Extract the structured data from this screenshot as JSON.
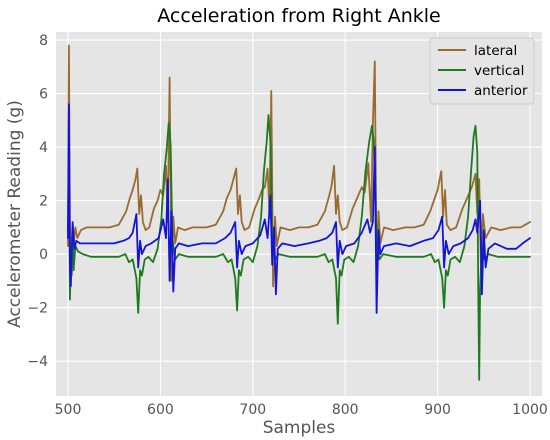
{
  "chart_data": {
    "type": "line",
    "title": "Acceleration from Right Ankle",
    "xlabel": "Samples",
    "ylabel": "Accelerometer Reading (g)",
    "xlim": [
      487,
      1013
    ],
    "ylim": [
      -5.3,
      8.3
    ],
    "x_ticks": [
      500,
      600,
      700,
      800,
      900,
      1000
    ],
    "y_ticks": [
      -4,
      -2,
      0,
      2,
      4,
      6,
      8
    ],
    "y_tick_labels": [
      "−4",
      "−2",
      "0",
      "2",
      "4",
      "6",
      "8"
    ],
    "grid": true,
    "legend_position": "top-right",
    "series": [
      {
        "name": "lateral",
        "color": "#9a6b2e",
        "points": [
          [
            500,
            0.3
          ],
          [
            501,
            7.8
          ],
          [
            502,
            1.2
          ],
          [
            504,
            -0.8
          ],
          [
            506,
            0.4
          ],
          [
            508,
            1.0
          ],
          [
            510,
            0.6
          ],
          [
            514,
            0.9
          ],
          [
            520,
            1.0
          ],
          [
            530,
            1.0
          ],
          [
            545,
            1.0
          ],
          [
            555,
            1.1
          ],
          [
            563,
            1.6
          ],
          [
            567,
            2.1
          ],
          [
            570,
            2.4
          ],
          [
            573,
            2.8
          ],
          [
            575,
            3.2
          ],
          [
            577,
            1.5
          ],
          [
            579,
            2.2
          ],
          [
            581,
            1.2
          ],
          [
            584,
            0.9
          ],
          [
            588,
            1.0
          ],
          [
            593,
            1.7
          ],
          [
            597,
            2.0
          ],
          [
            600,
            2.4
          ],
          [
            603,
            2.2
          ],
          [
            606,
            3.3
          ],
          [
            608,
            1.2
          ],
          [
            610,
            6.6
          ],
          [
            612,
            -1.0
          ],
          [
            614,
            1.4
          ],
          [
            616,
            0.4
          ],
          [
            619,
            1.0
          ],
          [
            626,
            0.9
          ],
          [
            635,
            1.0
          ],
          [
            650,
            1.0
          ],
          [
            660,
            1.1
          ],
          [
            668,
            1.6
          ],
          [
            672,
            2.1
          ],
          [
            676,
            2.4
          ],
          [
            679,
            2.8
          ],
          [
            682,
            3.2
          ],
          [
            684,
            1.5
          ],
          [
            686,
            2.2
          ],
          [
            688,
            1.2
          ],
          [
            691,
            0.9
          ],
          [
            696,
            1.0
          ],
          [
            702,
            1.7
          ],
          [
            707,
            2.1
          ],
          [
            710,
            2.4
          ],
          [
            713,
            2.5
          ],
          [
            716,
            3.2
          ],
          [
            718,
            1.5
          ],
          [
            720,
            6.1
          ],
          [
            722,
            -1.2
          ],
          [
            724,
            1.4
          ],
          [
            726,
            0.3
          ],
          [
            730,
            1.0
          ],
          [
            740,
            0.9
          ],
          [
            750,
            1.0
          ],
          [
            760,
            1.0
          ],
          [
            770,
            1.1
          ],
          [
            778,
            1.6
          ],
          [
            782,
            2.1
          ],
          [
            785,
            2.5
          ],
          [
            788,
            3.3
          ],
          [
            790,
            1.5
          ],
          [
            792,
            2.2
          ],
          [
            794,
            1.2
          ],
          [
            797,
            0.9
          ],
          [
            802,
            1.0
          ],
          [
            808,
            1.7
          ],
          [
            813,
            2.1
          ],
          [
            818,
            2.5
          ],
          [
            821,
            2.3
          ],
          [
            825,
            3.4
          ],
          [
            828,
            1.2
          ],
          [
            830,
            4.9
          ],
          [
            832,
            7.2
          ],
          [
            834,
            -0.7
          ],
          [
            836,
            1.6
          ],
          [
            838,
            0.4
          ],
          [
            842,
            1.0
          ],
          [
            852,
            0.9
          ],
          [
            865,
            1.0
          ],
          [
            875,
            1.0
          ],
          [
            885,
            1.1
          ],
          [
            892,
            1.6
          ],
          [
            897,
            2.1
          ],
          [
            900,
            2.4
          ],
          [
            904,
            3.1
          ],
          [
            906,
            1.4
          ],
          [
            908,
            2.4
          ],
          [
            910,
            1.1
          ],
          [
            914,
            0.9
          ],
          [
            920,
            1.0
          ],
          [
            927,
            1.7
          ],
          [
            932,
            2.1
          ],
          [
            937,
            2.5
          ],
          [
            941,
            3.0
          ],
          [
            943,
            1.5
          ],
          [
            945,
            2.8
          ],
          [
            947,
            -0.6
          ],
          [
            949,
            1.5
          ],
          [
            952,
            0.6
          ],
          [
            958,
            1.0
          ],
          [
            968,
            0.9
          ],
          [
            980,
            1.0
          ],
          [
            990,
            1.0
          ],
          [
            1000,
            1.2
          ]
        ]
      },
      {
        "name": "vertical",
        "color": "#1e7a1e",
        "points": [
          [
            500,
            0.8
          ],
          [
            501,
            3.8
          ],
          [
            502,
            -1.7
          ],
          [
            503,
            -0.5
          ],
          [
            505,
            0.8
          ],
          [
            506,
            -0.6
          ],
          [
            508,
            0.3
          ],
          [
            511,
            0.1
          ],
          [
            516,
            0.0
          ],
          [
            525,
            -0.1
          ],
          [
            540,
            -0.1
          ],
          [
            555,
            -0.1
          ],
          [
            562,
            0.0
          ],
          [
            566,
            -0.3
          ],
          [
            570,
            -0.2
          ],
          [
            574,
            -0.9
          ],
          [
            576,
            -2.2
          ],
          [
            578,
            -0.6
          ],
          [
            580,
            -0.8
          ],
          [
            583,
            -0.2
          ],
          [
            587,
            -0.1
          ],
          [
            592,
            -0.3
          ],
          [
            597,
            0.2
          ],
          [
            601,
            1.3
          ],
          [
            604,
            3.0
          ],
          [
            607,
            4.0
          ],
          [
            609,
            4.9
          ],
          [
            611,
            4.1
          ],
          [
            613,
            0.6
          ],
          [
            616,
            -0.2
          ],
          [
            620,
            0.0
          ],
          [
            630,
            -0.1
          ],
          [
            645,
            -0.1
          ],
          [
            660,
            -0.1
          ],
          [
            668,
            0.0
          ],
          [
            673,
            -0.3
          ],
          [
            677,
            -0.2
          ],
          [
            681,
            -0.9
          ],
          [
            683,
            -2.1
          ],
          [
            685,
            -0.6
          ],
          [
            687,
            -0.8
          ],
          [
            690,
            -0.2
          ],
          [
            695,
            -0.1
          ],
          [
            700,
            -0.3
          ],
          [
            705,
            0.3
          ],
          [
            709,
            1.4
          ],
          [
            712,
            3.1
          ],
          [
            715,
            4.2
          ],
          [
            717,
            5.2
          ],
          [
            719,
            4.2
          ],
          [
            721,
            0.6
          ],
          [
            724,
            -0.2
          ],
          [
            728,
            0.0
          ],
          [
            740,
            -0.1
          ],
          [
            755,
            -0.1
          ],
          [
            770,
            -0.1
          ],
          [
            778,
            0.0
          ],
          [
            782,
            -0.3
          ],
          [
            786,
            -0.2
          ],
          [
            790,
            -0.9
          ],
          [
            792,
            -2.6
          ],
          [
            794,
            -0.6
          ],
          [
            796,
            -0.8
          ],
          [
            799,
            -0.2
          ],
          [
            804,
            -0.1
          ],
          [
            809,
            -0.3
          ],
          [
            814,
            0.3
          ],
          [
            818,
            1.4
          ],
          [
            822,
            3.1
          ],
          [
            826,
            4.2
          ],
          [
            829,
            4.8
          ],
          [
            831,
            4.2
          ],
          [
            834,
            0.6
          ],
          [
            837,
            -0.2
          ],
          [
            841,
            0.0
          ],
          [
            855,
            -0.1
          ],
          [
            870,
            -0.1
          ],
          [
            885,
            -0.1
          ],
          [
            893,
            0.0
          ],
          [
            897,
            -0.3
          ],
          [
            901,
            -0.2
          ],
          [
            905,
            -0.9
          ],
          [
            907,
            -2.0
          ],
          [
            909,
            -0.6
          ],
          [
            911,
            -0.8
          ],
          [
            914,
            -0.2
          ],
          [
            919,
            -0.1
          ],
          [
            924,
            -0.3
          ],
          [
            929,
            0.3
          ],
          [
            933,
            1.4
          ],
          [
            936,
            3.0
          ],
          [
            939,
            4.4
          ],
          [
            941,
            4.8
          ],
          [
            943,
            3.8
          ],
          [
            944,
            -1.2
          ],
          [
            945,
            -4.7
          ],
          [
            946,
            -1.3
          ],
          [
            948,
            0.4
          ],
          [
            951,
            -0.2
          ],
          [
            955,
            0.0
          ],
          [
            965,
            -0.1
          ],
          [
            980,
            -0.1
          ],
          [
            1000,
            -0.1
          ]
        ]
      },
      {
        "name": "anterior",
        "color": "#1414d8",
        "points": [
          [
            500,
            0.6
          ],
          [
            501,
            5.6
          ],
          [
            502,
            -0.3
          ],
          [
            503,
            -1.2
          ],
          [
            505,
            1.2
          ],
          [
            507,
            0.2
          ],
          [
            509,
            0.5
          ],
          [
            513,
            0.4
          ],
          [
            520,
            0.4
          ],
          [
            535,
            0.4
          ],
          [
            550,
            0.4
          ],
          [
            560,
            0.5
          ],
          [
            566,
            0.6
          ],
          [
            570,
            0.8
          ],
          [
            574,
            1.5
          ],
          [
            576,
            -0.5
          ],
          [
            578,
            0.5
          ],
          [
            580,
            0.0
          ],
          [
            584,
            0.3
          ],
          [
            590,
            0.4
          ],
          [
            598,
            0.6
          ],
          [
            603,
            1.3
          ],
          [
            606,
            0.6
          ],
          [
            608,
            2.8
          ],
          [
            610,
            -1.0
          ],
          [
            612,
            1.6
          ],
          [
            614,
            -1.4
          ],
          [
            616,
            0.2
          ],
          [
            620,
            0.4
          ],
          [
            630,
            0.3
          ],
          [
            645,
            0.4
          ],
          [
            660,
            0.4
          ],
          [
            670,
            0.6
          ],
          [
            676,
            0.8
          ],
          [
            681,
            1.2
          ],
          [
            683,
            -0.5
          ],
          [
            685,
            0.5
          ],
          [
            688,
            0.0
          ],
          [
            692,
            0.3
          ],
          [
            700,
            0.4
          ],
          [
            708,
            0.7
          ],
          [
            713,
            1.3
          ],
          [
            716,
            0.6
          ],
          [
            719,
            2.2
          ],
          [
            721,
            -0.4
          ],
          [
            723,
            1.0
          ],
          [
            725,
            -1.5
          ],
          [
            727,
            0.2
          ],
          [
            732,
            0.4
          ],
          [
            745,
            0.3
          ],
          [
            760,
            0.4
          ],
          [
            772,
            0.5
          ],
          [
            780,
            0.6
          ],
          [
            786,
            0.8
          ],
          [
            790,
            1.2
          ],
          [
            792,
            -0.5
          ],
          [
            794,
            0.5
          ],
          [
            797,
            0.0
          ],
          [
            801,
            0.3
          ],
          [
            810,
            0.4
          ],
          [
            818,
            0.8
          ],
          [
            824,
            1.3
          ],
          [
            827,
            0.8
          ],
          [
            830,
            1.2
          ],
          [
            832,
            4.0
          ],
          [
            834,
            -2.2
          ],
          [
            836,
            0.9
          ],
          [
            838,
            0.0
          ],
          [
            842,
            0.3
          ],
          [
            855,
            0.4
          ],
          [
            870,
            0.3
          ],
          [
            885,
            0.5
          ],
          [
            895,
            0.6
          ],
          [
            901,
            0.9
          ],
          [
            905,
            1.4
          ],
          [
            907,
            -0.5
          ],
          [
            909,
            0.5
          ],
          [
            912,
            0.0
          ],
          [
            917,
            0.3
          ],
          [
            925,
            0.4
          ],
          [
            933,
            0.6
          ],
          [
            938,
            0.9
          ],
          [
            941,
            1.3
          ],
          [
            943,
            0.8
          ],
          [
            946,
            2.0
          ],
          [
            948,
            -1.5
          ],
          [
            950,
            0.9
          ],
          [
            952,
            -0.5
          ],
          [
            955,
            0.2
          ],
          [
            962,
            0.4
          ],
          [
            975,
            0.2
          ],
          [
            985,
            0.2
          ],
          [
            992,
            0.4
          ],
          [
            1000,
            0.6
          ]
        ]
      }
    ]
  }
}
